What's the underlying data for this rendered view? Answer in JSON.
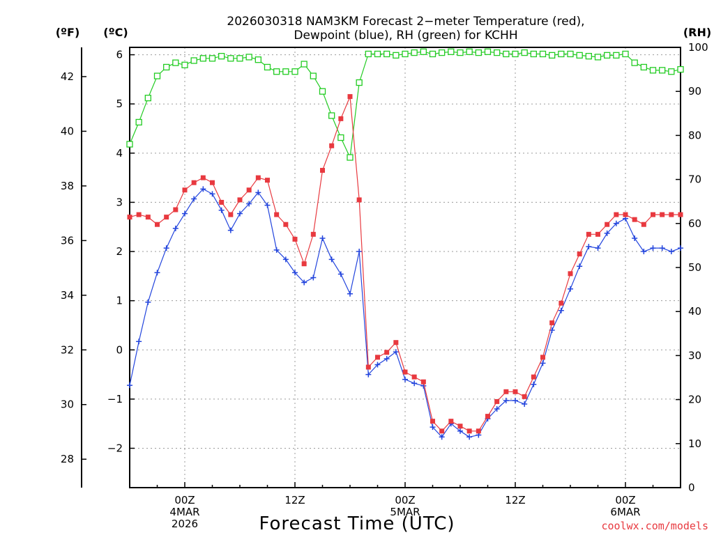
{
  "chart_data": {
    "type": "line",
    "title_line1": "2026030318 NAM3KM Forecast 2−meter Temperature (red),",
    "title_line2": "Dewpoint (blue), RH (green) for KCHH",
    "xlabel": "Forecast Time (UTC)",
    "credit": "coolwx.com/models",
    "units": {
      "fahrenheit": "(ºF)",
      "celsius": "(ºC)",
      "rh": "(RH)"
    },
    "x_range_hours": [
      0,
      60
    ],
    "celsius_axis": {
      "range": [
        -2.8,
        6.15
      ],
      "ticks": [
        6,
        5,
        4,
        3,
        2,
        1,
        0,
        -1,
        -2
      ],
      "labels": [
        "6",
        "5",
        "4",
        "3",
        "2",
        "1",
        "0",
        "−1",
        "−2"
      ]
    },
    "fahrenheit_axis": {
      "ticks": [
        42,
        40,
        38,
        36,
        34,
        32,
        30,
        28
      ],
      "labels": [
        "42",
        "40",
        "38",
        "36",
        "34",
        "32",
        "30",
        "28"
      ]
    },
    "rh_axis": {
      "range": [
        0,
        100
      ],
      "ticks": [
        100,
        90,
        80,
        70,
        60,
        50,
        40,
        30,
        20,
        10,
        0
      ],
      "labels": [
        "100",
        "90",
        "80",
        "70",
        "60",
        "50",
        "40",
        "30",
        "20",
        "10",
        "0"
      ]
    },
    "x_ticks": [
      {
        "hour": 6,
        "lines": [
          "00Z",
          "4MAR",
          "2026"
        ]
      },
      {
        "hour": 18,
        "lines": [
          "12Z"
        ]
      },
      {
        "hour": 30,
        "lines": [
          "00Z",
          "5MAR"
        ]
      },
      {
        "hour": 42,
        "lines": [
          "12Z"
        ]
      },
      {
        "hour": 54,
        "lines": [
          "00Z",
          "6MAR"
        ]
      }
    ],
    "colors": {
      "temperature": "#e8393f",
      "dewpoint": "#2244dd",
      "rh": "#22cc22"
    },
    "series": [
      {
        "name": "Temperature (C)",
        "values": [
          2.7,
          2.75,
          2.7,
          2.55,
          2.7,
          2.85,
          3.25,
          3.4,
          3.5,
          3.4,
          3.0,
          2.75,
          3.05,
          3.25,
          3.5,
          3.45,
          2.75,
          2.55,
          2.25,
          1.75,
          2.35,
          3.65,
          4.15,
          4.7,
          5.15,
          3.05,
          -0.35,
          -0.15,
          -0.05,
          0.15,
          -0.45,
          -0.55,
          -0.65,
          -1.45,
          -1.65,
          -1.45,
          -1.55,
          -1.65,
          -1.65,
          -1.35,
          -1.05,
          -0.85,
          -0.85,
          -0.95,
          -0.55,
          -0.15,
          0.55,
          0.95,
          1.55,
          1.95,
          2.35,
          2.35,
          2.55,
          2.75,
          2.75,
          2.65,
          2.55,
          2.75,
          2.75,
          2.75,
          2.75
        ]
      },
      {
        "name": "Dewpoint (C)",
        "values": [
          -0.72,
          0.17,
          0.97,
          1.57,
          2.07,
          2.47,
          2.77,
          3.07,
          3.27,
          3.17,
          2.84,
          2.43,
          2.77,
          2.97,
          3.2,
          2.94,
          2.03,
          1.84,
          1.57,
          1.37,
          1.47,
          2.27,
          1.84,
          1.54,
          1.14,
          2.0,
          -0.5,
          -0.3,
          -0.18,
          -0.04,
          -0.6,
          -0.68,
          -0.73,
          -1.57,
          -1.77,
          -1.5,
          -1.65,
          -1.77,
          -1.73,
          -1.4,
          -1.2,
          -1.03,
          -1.03,
          -1.1,
          -0.7,
          -0.27,
          0.4,
          0.8,
          1.24,
          1.7,
          2.1,
          2.07,
          2.37,
          2.57,
          2.67,
          2.27,
          2.0,
          2.07,
          2.07,
          2.0,
          2.07
        ]
      },
      {
        "name": "RH (%)",
        "values": [
          78,
          83,
          88.5,
          93.5,
          95.5,
          96.5,
          96,
          97,
          97.5,
          97.5,
          98,
          97.5,
          97.5,
          97.8,
          97.2,
          95.5,
          94.5,
          94.5,
          94.5,
          96.2,
          93.5,
          90,
          84.5,
          79.5,
          75,
          92,
          98.5,
          98.5,
          98.5,
          98.2,
          98.5,
          98.8,
          99,
          98.5,
          98.8,
          99,
          98.8,
          99,
          98.8,
          99,
          98.8,
          98.5,
          98.5,
          98.8,
          98.5,
          98.5,
          98.2,
          98.5,
          98.5,
          98.2,
          98,
          97.8,
          98.2,
          98.2,
          98.5,
          96.5,
          95.5,
          94.8,
          94.8,
          94.5,
          95
        ]
      }
    ]
  }
}
